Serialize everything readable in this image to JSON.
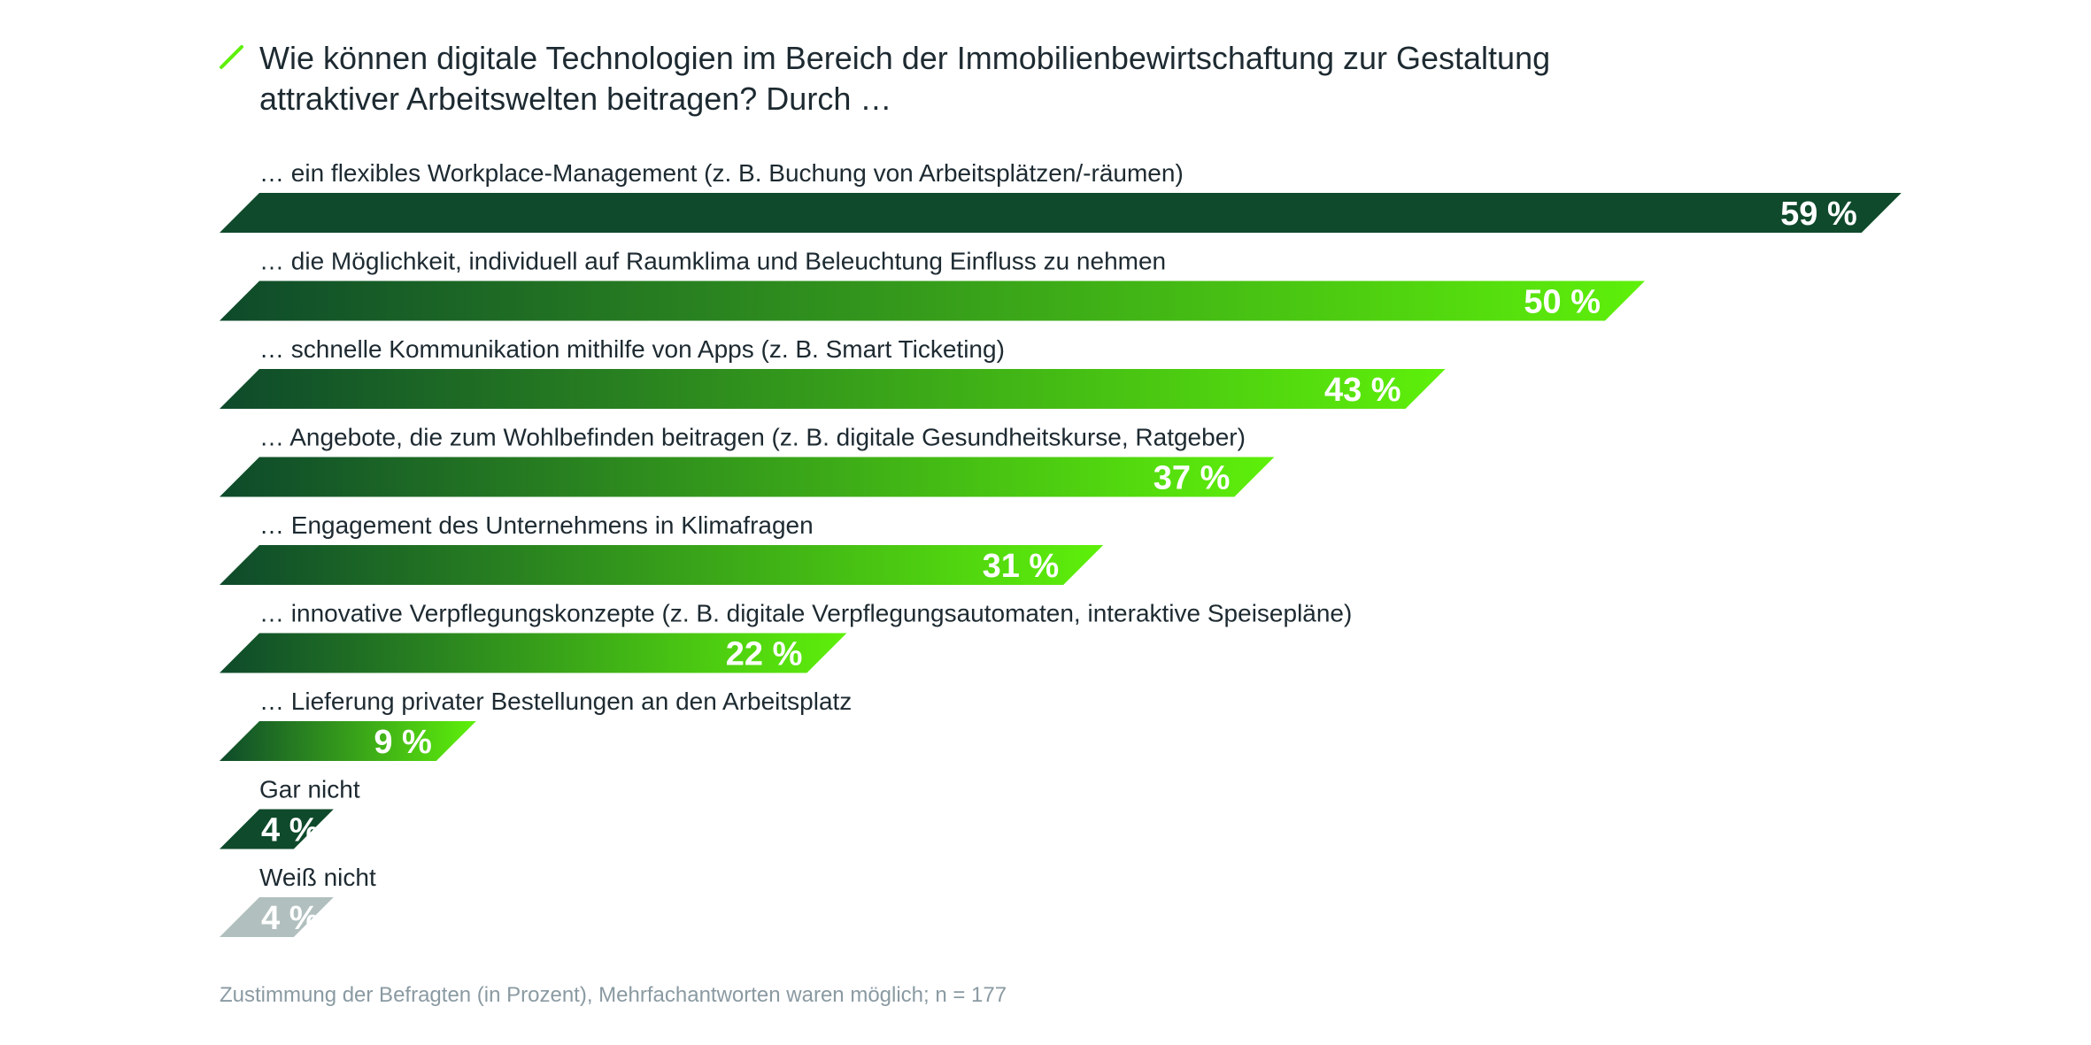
{
  "chart_data": {
    "type": "bar",
    "orientation": "horizontal",
    "title_lines": [
      "Wie können digitale Technologien im Bereich der Immobilienbewirtschaftung zur Gestaltung",
      "attraktiver Arbeitswelten beitragen? Durch …"
    ],
    "categories": [
      "… ein flexibles Workplace-Management (z. B. Buchung von Arbeitsplätzen/-räumen)",
      "… die Möglichkeit, individuell auf Raumklima und Beleuchtung Einfluss zu nehmen",
      "… schnelle Kommunikation mithilfe von Apps (z. B. Smart Ticketing)",
      "… Angebote, die zum Wohlbefinden beitragen (z. B. digitale Gesundheitskurse, Ratgeber)",
      "… Engagement des Unternehmens in Klimafragen",
      "… innovative Verpflegungskonzepte (z. B. digitale Verpflegungsautomaten, interaktive Speisepläne)",
      "… Lieferung privater Bestellungen an den Arbeitsplatz",
      "Gar nicht",
      "Weiß nicht"
    ],
    "values": [
      59,
      50,
      43,
      37,
      31,
      22,
      9,
      4,
      4
    ],
    "value_labels": [
      "59 %",
      "50 %",
      "43 %",
      "37 %",
      "31 %",
      "22 %",
      "9 %",
      "4 %",
      "4 %"
    ],
    "unit": "%",
    "footnote": "Zustimmung der Befragten (in Prozent), Mehrfachantworten waren möglich; n = 177",
    "colors": {
      "dark_green": "#0e4a2b",
      "bright_green": "#5ef00a",
      "grey": "#b2bfbf",
      "title_accent": "#5ef00a",
      "text": "#1d2a31",
      "footnote": "#8a9aa2"
    },
    "bar_styles": [
      "solid-dark",
      "gradient",
      "gradient",
      "gradient",
      "gradient",
      "gradient",
      "gradient",
      "solid-dark",
      "solid-grey"
    ],
    "grid": false,
    "legend": "none"
  }
}
